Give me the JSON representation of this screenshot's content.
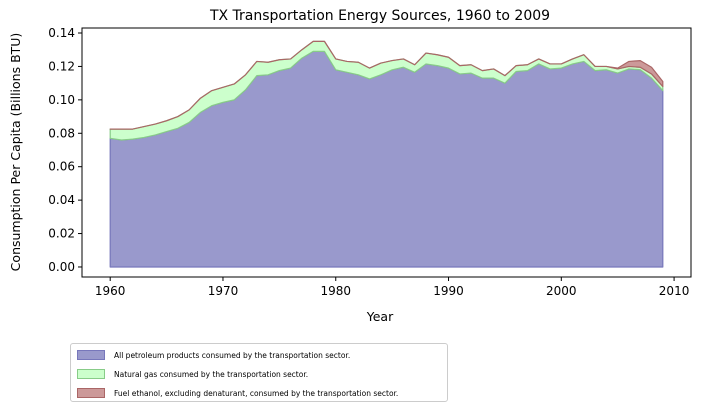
{
  "chart_data": {
    "type": "area",
    "stacked": true,
    "title": "TX Transportation Energy Sources, 1960 to 2009",
    "xlabel": "Year",
    "ylabel": "Consumption Per Capita (Billions BTU)",
    "xlim": [
      1957.5,
      2011.5
    ],
    "ylim": [
      -0.006,
      0.143
    ],
    "xticks": [
      1960,
      1970,
      1980,
      1990,
      2000,
      2010
    ],
    "yticks": [
      0.0,
      0.02,
      0.04,
      0.06,
      0.08,
      0.1,
      0.12,
      0.14
    ],
    "ytick_labels": [
      "0.00",
      "0.02",
      "0.04",
      "0.06",
      "0.08",
      "0.10",
      "0.12",
      "0.14"
    ],
    "grid": false,
    "legend_position": "below",
    "x": [
      1960,
      1961,
      1962,
      1963,
      1964,
      1965,
      1966,
      1967,
      1968,
      1969,
      1970,
      1971,
      1972,
      1973,
      1974,
      1975,
      1976,
      1977,
      1978,
      1979,
      1980,
      1981,
      1982,
      1983,
      1984,
      1985,
      1986,
      1987,
      1988,
      1989,
      1990,
      1991,
      1992,
      1993,
      1994,
      1995,
      1996,
      1997,
      1998,
      1999,
      2000,
      2001,
      2002,
      2003,
      2004,
      2005,
      2006,
      2007,
      2008,
      2009
    ],
    "series": [
      {
        "name": "All petroleum products consumed by the transportation sector.",
        "color": "#9999cc",
        "edge": "#7777bb",
        "values": [
          0.077,
          0.076,
          0.0765,
          0.0775,
          0.079,
          0.081,
          0.083,
          0.0865,
          0.0925,
          0.0965,
          0.0985,
          0.1,
          0.106,
          0.1145,
          0.115,
          0.1175,
          0.119,
          0.125,
          0.129,
          0.129,
          0.118,
          0.1165,
          0.115,
          0.1125,
          0.115,
          0.118,
          0.1195,
          0.1165,
          0.1215,
          0.1205,
          0.119,
          0.1155,
          0.116,
          0.113,
          0.113,
          0.11,
          0.117,
          0.1175,
          0.1215,
          0.1185,
          0.119,
          0.1215,
          0.123,
          0.1175,
          0.118,
          0.116,
          0.1185,
          0.118,
          0.113,
          0.1055
        ]
      },
      {
        "name": "Natural gas consumed by the transportation sector.",
        "color": "#ccffcc",
        "edge": "#88cc88",
        "values": [
          0.0055,
          0.0065,
          0.006,
          0.0065,
          0.0065,
          0.0065,
          0.007,
          0.0075,
          0.0085,
          0.009,
          0.009,
          0.0095,
          0.009,
          0.0085,
          0.0075,
          0.0065,
          0.0055,
          0.005,
          0.006,
          0.006,
          0.0065,
          0.0065,
          0.0075,
          0.0065,
          0.007,
          0.0055,
          0.005,
          0.0045,
          0.0065,
          0.0065,
          0.0065,
          0.005,
          0.005,
          0.0045,
          0.0055,
          0.0045,
          0.0035,
          0.0035,
          0.003,
          0.003,
          0.0025,
          0.003,
          0.004,
          0.0025,
          0.002,
          0.0025,
          0.0015,
          0.0015,
          0.0025,
          0.0025
        ]
      },
      {
        "name": "Fuel ethanol, excluding denaturant, consumed by the transportation sector.",
        "color": "#cc9999",
        "edge": "#aa6666",
        "values": [
          0,
          0,
          0,
          0,
          0,
          0,
          0,
          0,
          0,
          0,
          0,
          0,
          0,
          0,
          0,
          0,
          0,
          0,
          0,
          0,
          0,
          0,
          0,
          0,
          0,
          0,
          0,
          0,
          0,
          0,
          0,
          0,
          0,
          0,
          0,
          0,
          0,
          0,
          0,
          0,
          0,
          0,
          0,
          0,
          0,
          0.0005,
          0.003,
          0.004,
          0.004,
          0.003
        ]
      }
    ]
  }
}
